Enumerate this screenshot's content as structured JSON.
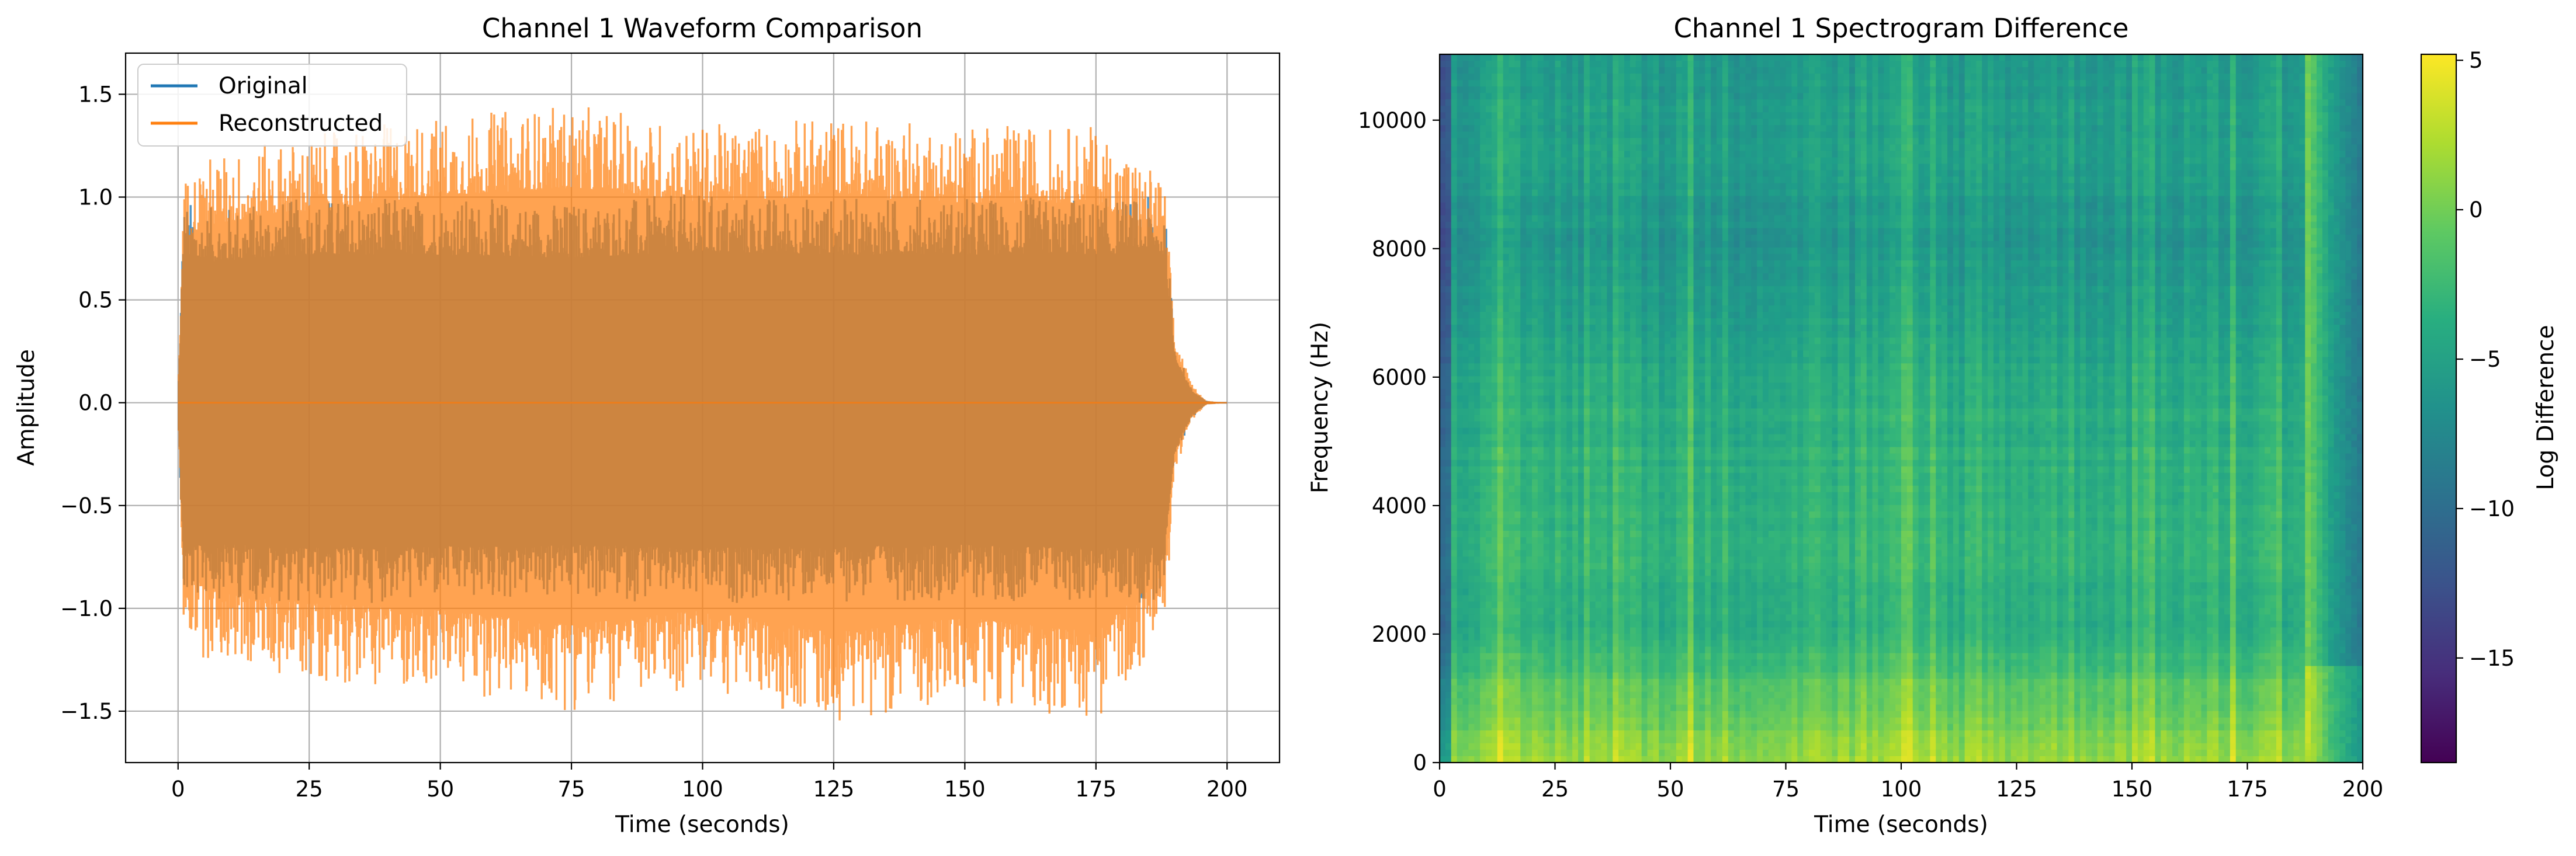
{
  "chart_data": [
    {
      "type": "line",
      "title": "Channel 1 Waveform Comparison",
      "xlabel": "Time (seconds)",
      "ylabel": "Amplitude",
      "xlim": [
        -10,
        210
      ],
      "ylim": [
        -1.75,
        1.7
      ],
      "grid": true,
      "legend": "top-left",
      "xticks": [
        0,
        25,
        50,
        75,
        100,
        125,
        150,
        175,
        200
      ],
      "yticks": [
        -1.5,
        -1.0,
        -0.5,
        0.0,
        0.5,
        1.0,
        1.5
      ],
      "xtick_labels": [
        "0",
        "25",
        "50",
        "75",
        "100",
        "125",
        "150",
        "175",
        "200"
      ],
      "ytick_labels": [
        "−1.5",
        "−1.0",
        "−0.5",
        "0.0",
        "0.5",
        "1.0",
        "1.5"
      ],
      "series": [
        {
          "name": "Original",
          "color": "#1f77b4",
          "x": [
            0,
            1,
            5,
            25,
            50,
            75,
            100,
            125,
            150,
            175,
            188,
            190,
            193,
            196,
            200
          ],
          "envelope_max": [
            0.0,
            1.0,
            0.95,
            1.0,
            1.0,
            0.98,
            1.02,
            1.0,
            1.0,
            1.0,
            1.0,
            0.3,
            0.08,
            0.01,
            0.0
          ],
          "envelope_min": [
            0.0,
            -1.0,
            -0.95,
            -0.98,
            -0.97,
            -0.96,
            -0.98,
            -0.97,
            -0.96,
            -0.98,
            -0.98,
            -0.3,
            -0.08,
            -0.01,
            0.0
          ]
        },
        {
          "name": "Reconstructed",
          "color": "#ff7f0e",
          "x": [
            0,
            1,
            5,
            25,
            50,
            75,
            100,
            125,
            150,
            175,
            188,
            190,
            193,
            196,
            200
          ],
          "envelope_max": [
            0.0,
            1.1,
            1.2,
            1.3,
            1.4,
            1.45,
            1.35,
            1.4,
            1.35,
            1.35,
            1.1,
            0.35,
            0.1,
            0.01,
            0.0
          ],
          "envelope_min": [
            0.0,
            -1.1,
            -1.25,
            -1.35,
            -1.4,
            -1.5,
            -1.4,
            -1.55,
            -1.45,
            -1.55,
            -1.15,
            -0.35,
            -0.1,
            -0.01,
            0.0
          ]
        }
      ]
    },
    {
      "type": "heatmap",
      "title": "Channel 1 Spectrogram Difference",
      "xlabel": "Time (seconds)",
      "ylabel": "Frequency (Hz)",
      "xlim": [
        0,
        200
      ],
      "ylim": [
        0,
        11025
      ],
      "xticks": [
        0,
        25,
        50,
        75,
        100,
        125,
        150,
        175,
        200
      ],
      "yticks": [
        0,
        2000,
        4000,
        6000,
        8000,
        10000
      ],
      "xtick_labels": [
        "0",
        "25",
        "50",
        "75",
        "100",
        "125",
        "150",
        "175",
        "200"
      ],
      "ytick_labels": [
        "0",
        "2000",
        "4000",
        "6000",
        "8000",
        "10000"
      ],
      "colormap": "viridis",
      "colorbar": {
        "label": "Log Difference",
        "range": [
          -18.5,
          5.2
        ],
        "ticks": [
          5,
          0,
          -5,
          -10,
          -15
        ],
        "tick_labels": [
          "5",
          "0",
          "−5",
          "−10",
          "−15"
        ]
      },
      "approx_levels_by_frequency": [
        {
          "freq": 0,
          "value": 1.5
        },
        {
          "freq": 500,
          "value": 0.5
        },
        {
          "freq": 1200,
          "value": -1
        },
        {
          "freq": 2000,
          "value": -3.5
        },
        {
          "freq": 4000,
          "value": -3
        },
        {
          "freq": 6000,
          "value": -4
        },
        {
          "freq": 8000,
          "value": -6
        },
        {
          "freq": 10000,
          "value": -5
        },
        {
          "freq": 11025,
          "value": -6
        }
      ],
      "approx_levels_by_time": [
        {
          "time": 0,
          "value": -8
        },
        {
          "time": 188,
          "value": 0
        },
        {
          "time": 193,
          "value": -5
        },
        {
          "time": 200,
          "value": -9
        }
      ]
    }
  ]
}
